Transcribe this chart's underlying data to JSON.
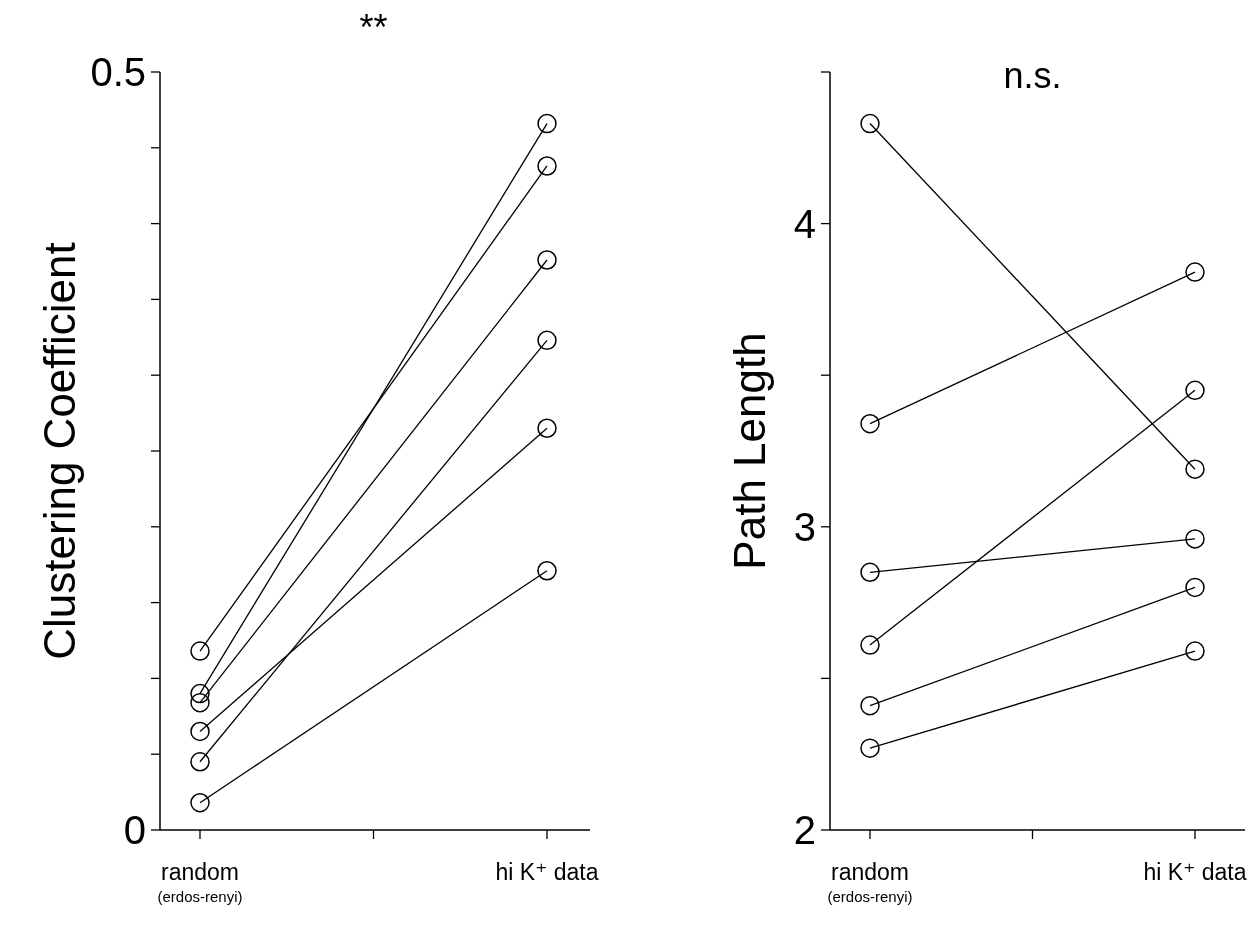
{
  "chart_data": [
    {
      "type": "line",
      "ylabel": "Clustering Coefficient",
      "categories": [
        "random\n(erdos-renyi)",
        null,
        "hi K⁺ data"
      ],
      "ylim": [
        0,
        0.5
      ],
      "yticks": [
        0,
        {
          "value": 0.05,
          "label": null
        },
        {
          "value": 0.1,
          "label": null
        },
        {
          "value": 0.15,
          "label": null
        },
        {
          "value": 0.2,
          "label": null
        },
        {
          "value": 0.25,
          "label": null
        },
        {
          "value": 0.3,
          "label": null
        },
        {
          "value": 0.35,
          "label": null
        },
        {
          "value": 0.4,
          "label": null
        },
        {
          "value": 0.45,
          "label": null
        },
        0.5
      ],
      "marker": "circle",
      "annotations": [
        "**"
      ],
      "series": [
        {
          "color": "#000000",
          "values": [
            0.118,
            null,
            0.438
          ]
        },
        {
          "color": "#000000",
          "values": [
            0.09,
            null,
            0.466
          ]
        },
        {
          "color": "#000000",
          "values": [
            0.084,
            null,
            0.376
          ]
        },
        {
          "color": "#000000",
          "values": [
            0.065,
            null,
            0.265
          ]
        },
        {
          "color": "#000000",
          "values": [
            0.045,
            null,
            0.323
          ]
        },
        {
          "color": "#000000",
          "values": [
            0.018,
            null,
            0.171
          ]
        }
      ]
    },
    {
      "type": "line",
      "ylabel": "Path Length",
      "categories": [
        "random\n(erdos-renyi)",
        null,
        "hi K⁺ data"
      ],
      "ylim": [
        2,
        4.5
      ],
      "yticks": [
        2,
        {
          "value": 2.5,
          "label": null
        },
        3,
        {
          "value": 3.5,
          "label": null
        },
        4,
        {
          "value": 4.5,
          "label": null
        }
      ],
      "marker": "circle",
      "annotations": [
        "n.s."
      ],
      "series": [
        {
          "color": "#000000",
          "values": [
            4.33,
            null,
            3.19
          ]
        },
        {
          "color": "#000000",
          "values": [
            3.34,
            null,
            3.84
          ]
        },
        {
          "color": "#000000",
          "values": [
            2.85,
            null,
            2.96
          ]
        },
        {
          "color": "#000000",
          "values": [
            2.61,
            null,
            3.45
          ]
        },
        {
          "color": "#000000",
          "values": [
            2.41,
            null,
            2.8
          ]
        },
        {
          "color": "#000000",
          "values": [
            2.27,
            null,
            2.59
          ]
        }
      ]
    }
  ]
}
